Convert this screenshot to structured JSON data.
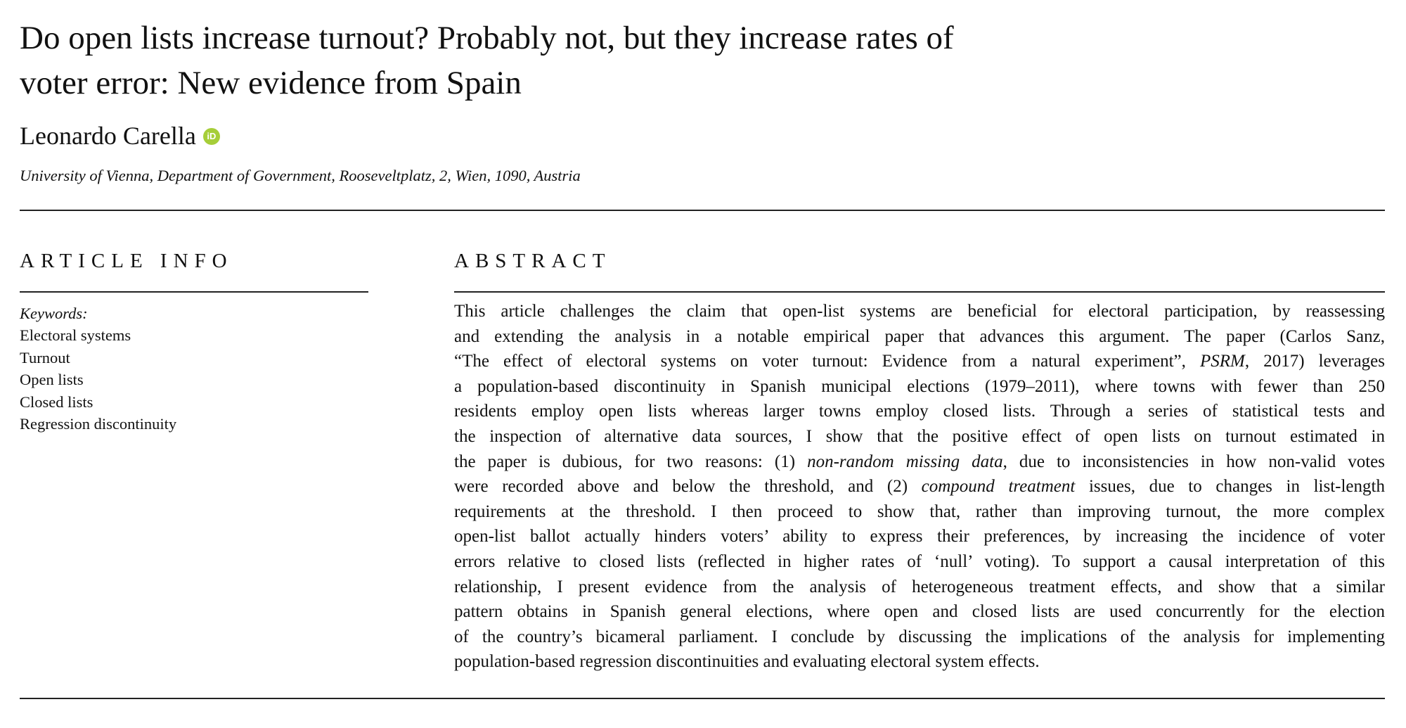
{
  "title_lines": [
    "Do open lists increase turnout? Probably not, but they increase rates of",
    "voter error: New evidence from Spain"
  ],
  "author": "Leonardo Carella",
  "orcid_icon": "orcid-icon",
  "orcid_label": "iD",
  "orcid_color": "#a6ce39",
  "affiliation": "University of Vienna, Department of Government, Rooseveltplatz, 2, Wien, 1090, Austria",
  "article_info": {
    "heading": "ARTICLE INFO",
    "keywords_label": "Keywords:",
    "keywords": [
      "Electoral systems",
      "Turnout",
      "Open lists",
      "Closed lists",
      "Regression discontinuity"
    ]
  },
  "abstract": {
    "heading": "ABSTRACT",
    "lines": [
      [
        {
          "t": "This article challenges the claim that open-list systems are beneficial for electoral participation, by reassessing"
        }
      ],
      [
        {
          "t": "and extending the analysis in a notable empirical paper that advances this argument. The paper (Carlos Sanz,"
        }
      ],
      [
        {
          "t": "“The effect of electoral systems on voter turnout: Evidence from a natural experiment”, "
        },
        {
          "t": "PSRM",
          "i": true
        },
        {
          "t": ", 2017) leverages"
        }
      ],
      [
        {
          "t": "a population-based discontinuity in Spanish municipal elections (1979–2011), where towns with fewer than 250"
        }
      ],
      [
        {
          "t": "residents employ open lists whereas larger towns employ closed lists. Through a series of statistical tests and"
        }
      ],
      [
        {
          "t": "the inspection of alternative data sources, I show that the positive effect of open lists on turnout estimated in"
        }
      ],
      [
        {
          "t": "the paper is dubious, for two reasons: (1) "
        },
        {
          "t": "non-random missing data",
          "i": true
        },
        {
          "t": ", due to inconsistencies in how non-valid votes"
        }
      ],
      [
        {
          "t": "were recorded above and below the threshold, and (2) "
        },
        {
          "t": "compound treatment",
          "i": true
        },
        {
          "t": " issues, due to changes in list-length"
        }
      ],
      [
        {
          "t": "requirements at the threshold. I then proceed to show that, rather than improving turnout, the more complex"
        }
      ],
      [
        {
          "t": "open-list ballot actually hinders voters’ ability to express their preferences, by increasing the incidence of voter"
        }
      ],
      [
        {
          "t": "errors relative to closed lists (reflected in higher rates of ‘null’ voting). To support a causal interpretation of this"
        }
      ],
      [
        {
          "t": "relationship, I present evidence from the analysis of heterogeneous treatment effects, and show that a similar"
        }
      ],
      [
        {
          "t": "pattern obtains in Spanish general elections, where open and closed lists are used concurrently for the election"
        }
      ],
      [
        {
          "t": "of the country’s bicameral parliament. I conclude by discussing the implications of the analysis for implementing"
        }
      ],
      [
        {
          "t": "population-based regression discontinuities and evaluating electoral system effects."
        }
      ]
    ]
  }
}
